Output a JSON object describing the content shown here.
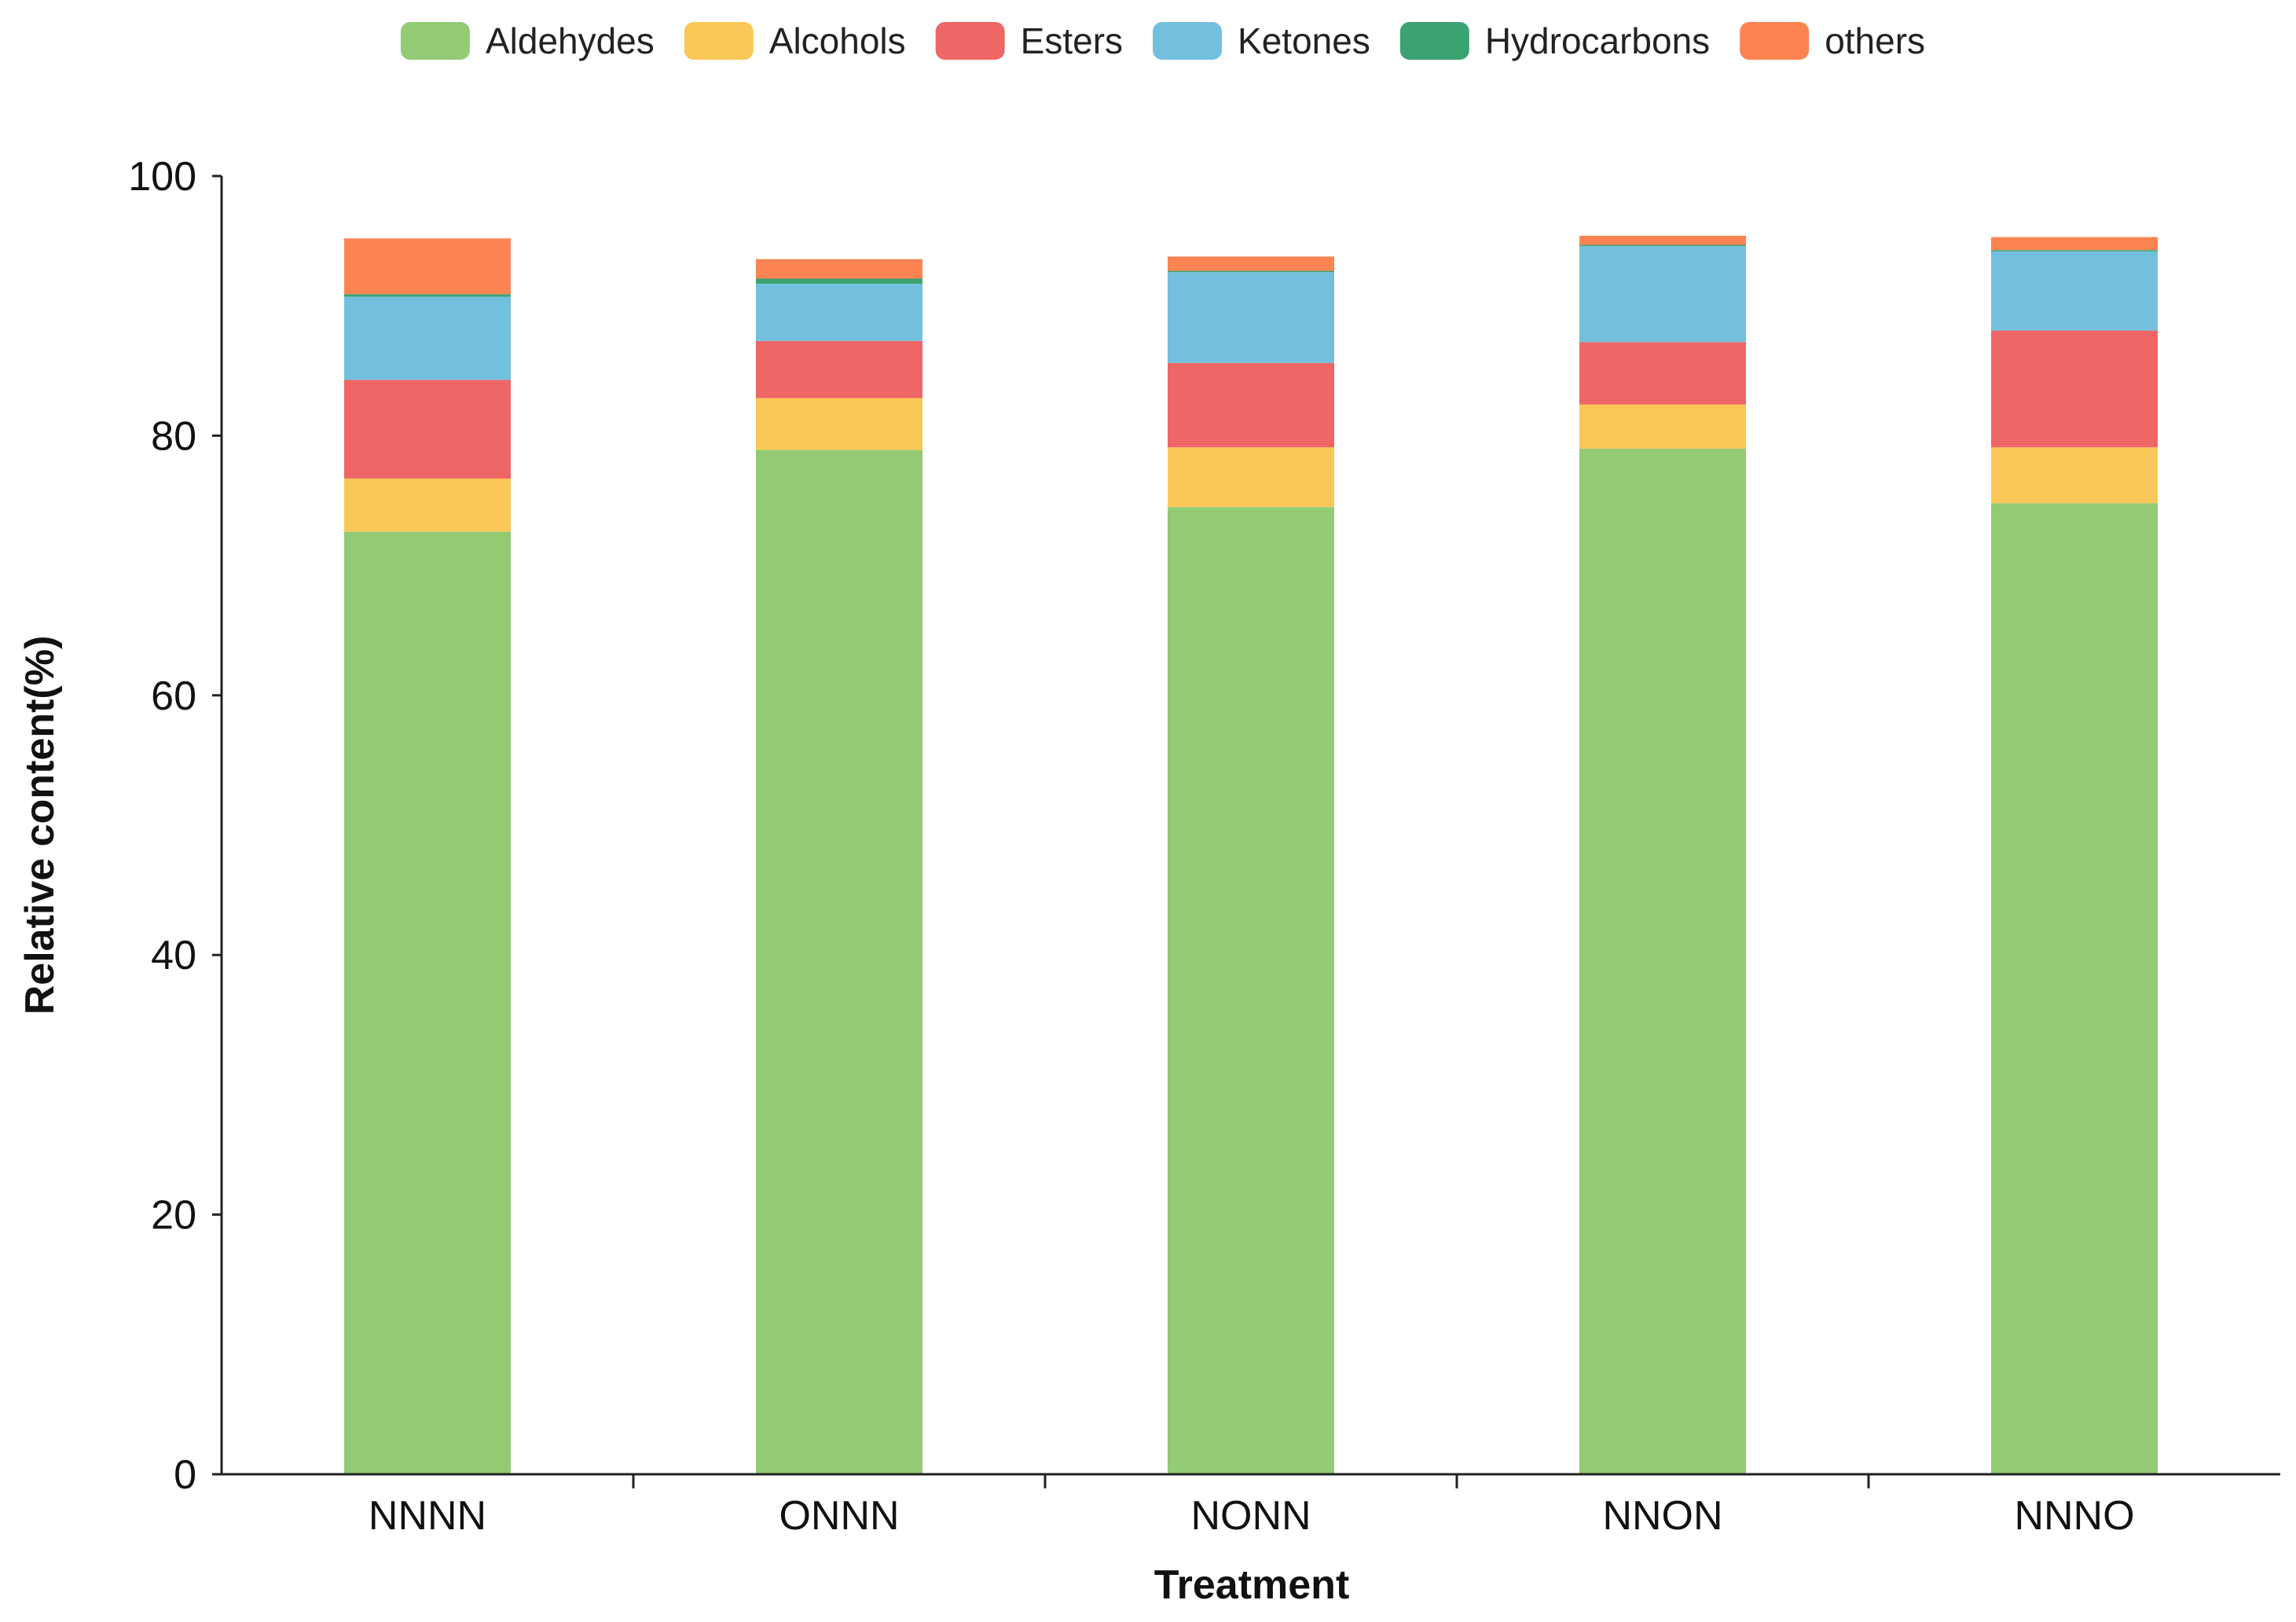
{
  "chart_data": {
    "type": "bar",
    "stacked": true,
    "title": "",
    "xlabel": "Treatment",
    "ylabel": "Relative content(%)",
    "ylim": [
      0,
      100
    ],
    "yticks": [
      "0",
      "20",
      "40",
      "60",
      "80",
      "100"
    ],
    "grid": false,
    "legend_position": "top-center",
    "categories": [
      "NNNN",
      "ONNN",
      "NONN",
      "NNON",
      "NNNO"
    ],
    "series": [
      {
        "name": "Aldehydes",
        "color": "#92CB74",
        "values": [
          72.6,
          78.9,
          74.5,
          79.0,
          74.8
        ]
      },
      {
        "name": "Alcohols",
        "color": "#FAC858",
        "values": [
          4.1,
          4.0,
          4.6,
          3.4,
          4.3
        ]
      },
      {
        "name": "Esters",
        "color": "#EE6666",
        "values": [
          7.6,
          4.4,
          6.5,
          4.8,
          9.0
        ]
      },
      {
        "name": "Ketones",
        "color": "#73C0DE",
        "values": [
          6.4,
          4.4,
          7.0,
          7.4,
          6.1
        ]
      },
      {
        "name": "Hydrocarbons",
        "color": "#3BA272",
        "values": [
          0.2,
          0.4,
          0.1,
          0.1,
          0.1
        ]
      },
      {
        "name": "others",
        "color": "#FC8452",
        "values": [
          4.3,
          1.5,
          1.1,
          0.7,
          1.0
        ]
      }
    ]
  }
}
